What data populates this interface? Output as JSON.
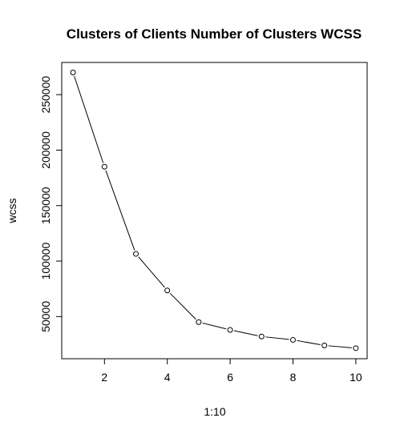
{
  "chart_data": {
    "type": "line",
    "title": "Clusters of Clients Number of Clusters WCSS",
    "xlabel": "1:10",
    "ylabel": "wcss",
    "x": [
      1,
      2,
      3,
      4,
      5,
      6,
      7,
      8,
      9,
      10
    ],
    "values": [
      269981,
      185000,
      106500,
      73500,
      45000,
      38000,
      32000,
      29000,
      24000,
      21500
    ],
    "xlim": [
      0.64,
      10.36
    ],
    "ylim": [
      12000,
      279000
    ],
    "xticks": [
      2,
      4,
      6,
      8,
      10
    ],
    "xtick_labels": [
      "2",
      "4",
      "6",
      "8",
      "10"
    ],
    "yticks": [
      50000,
      100000,
      150000,
      200000,
      250000
    ],
    "ytick_labels": [
      "50000",
      "100000",
      "150000",
      "200000",
      "250000"
    ],
    "marker": "open-circle",
    "line_color": "#000000",
    "grid": false,
    "legend": "none"
  }
}
